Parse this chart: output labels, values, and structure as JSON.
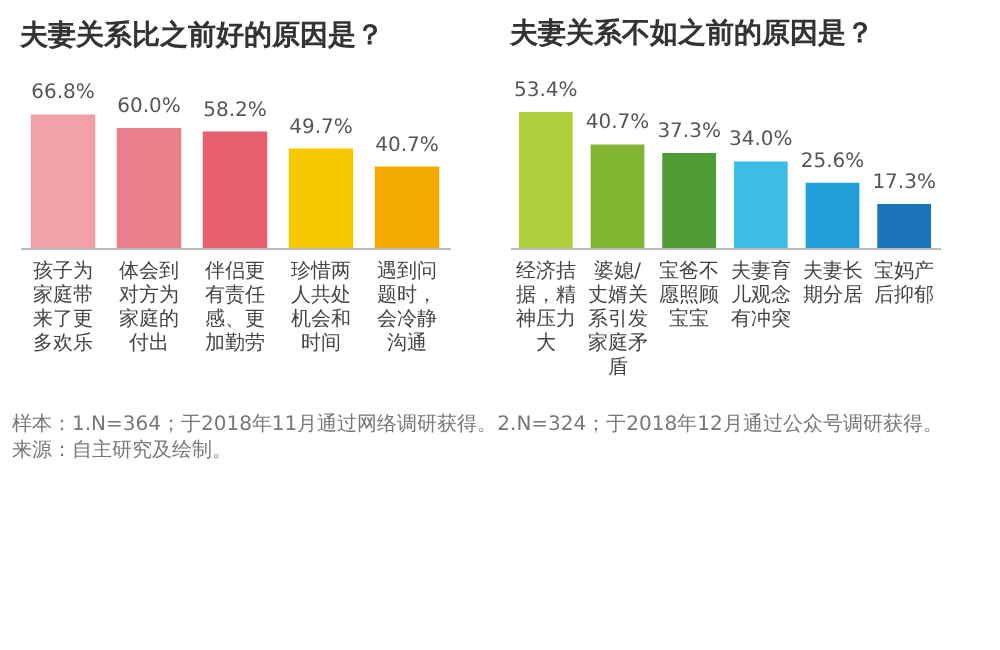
{
  "chart_data": [
    {
      "type": "bar",
      "title": "夫妻关系比之前好的原因是？",
      "categories": [
        "孩子为家庭带来了更多欢乐",
        "体会到对方为家庭的付出",
        "伴侣更有责任感、更加勤劳",
        "珍惜两人共处机会和时间",
        "遇到问题时，会冷静沟通"
      ],
      "values": [
        66.8,
        60.0,
        58.2,
        49.7,
        40.7
      ],
      "value_labels": [
        "66.8%",
        "60.0%",
        "58.2%",
        "49.7%",
        "40.7%"
      ],
      "colors": [
        "#f2a0a8",
        "#ea7f8c",
        "#e6606f",
        "#f6c800",
        "#f2a900"
      ]
    },
    {
      "type": "bar",
      "title": "夫妻关系不如之前的原因是？",
      "categories": [
        "经济拮据，精神压力大",
        "婆媳/丈婿关系引发家庭矛盾",
        "宝爸不愿照顾宝宝",
        "夫妻育儿观念有冲突",
        "夫妻长期分居",
        "宝妈产后抑郁"
      ],
      "values": [
        53.4,
        40.7,
        37.3,
        34.0,
        25.6,
        17.3
      ],
      "value_labels": [
        "53.4%",
        "40.7%",
        "37.3%",
        "34.0%",
        "25.6%",
        "17.3%"
      ],
      "colors": [
        "#b0cf3c",
        "#82b632",
        "#4f9c34",
        "#3cbde6",
        "#1f9ed9",
        "#1a72b8"
      ],
      "annotations": [
        "样本：1.N=364；于2018年11月通过网络调研获得。2.N=324；于2018年12月通过公众号调研获得。",
        "来源：自主研究及绘制。"
      ]
    }
  ]
}
